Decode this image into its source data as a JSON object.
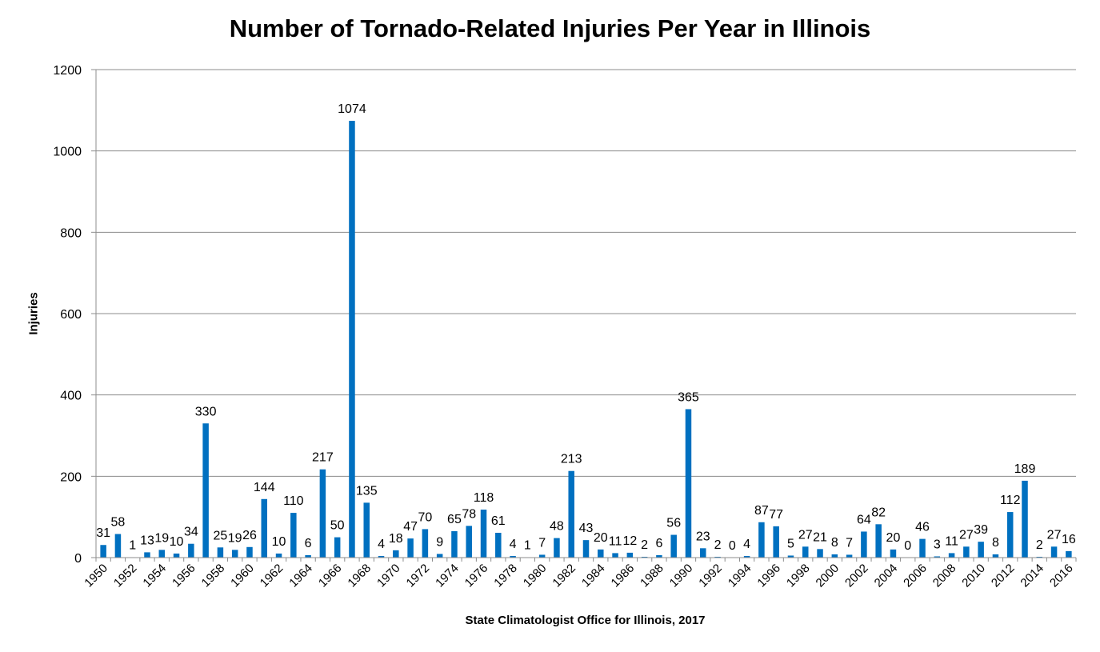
{
  "chart_data": {
    "type": "bar",
    "title": "Number of Tornado-Related Injuries Per Year in Illinois",
    "xlabel": "State Climatologist Office for Illinois, 2017",
    "ylabel": "Injuries",
    "ylim": [
      0,
      1200
    ],
    "yticks": [
      0,
      200,
      400,
      600,
      800,
      1000,
      1200
    ],
    "grid": true,
    "bar_color": "#0070C0",
    "categories": [
      1950,
      1951,
      1952,
      1953,
      1954,
      1955,
      1956,
      1957,
      1958,
      1959,
      1960,
      1961,
      1962,
      1963,
      1964,
      1965,
      1966,
      1967,
      1968,
      1969,
      1970,
      1971,
      1972,
      1973,
      1974,
      1975,
      1976,
      1977,
      1978,
      1979,
      1980,
      1981,
      1982,
      1983,
      1984,
      1985,
      1986,
      1987,
      1988,
      1989,
      1990,
      1991,
      1992,
      1993,
      1994,
      1995,
      1996,
      1997,
      1998,
      1999,
      2000,
      2001,
      2002,
      2003,
      2004,
      2005,
      2006,
      2007,
      2008,
      2009,
      2010,
      2011,
      2012,
      2013,
      2014,
      2015,
      2016
    ],
    "x_tick_labels": [
      1950,
      1952,
      1954,
      1956,
      1958,
      1960,
      1962,
      1964,
      1966,
      1968,
      1970,
      1972,
      1974,
      1976,
      1978,
      1980,
      1982,
      1984,
      1986,
      1988,
      1990,
      1992,
      1994,
      1996,
      1998,
      2000,
      2002,
      2004,
      2006,
      2008,
      2010,
      2012,
      2014,
      2016
    ],
    "values": [
      31,
      58,
      1,
      13,
      19,
      10,
      34,
      330,
      25,
      19,
      26,
      144,
      10,
      110,
      6,
      217,
      50,
      1074,
      135,
      4,
      18,
      47,
      70,
      9,
      65,
      78,
      118,
      61,
      4,
      1,
      7,
      48,
      213,
      43,
      20,
      11,
      12,
      2,
      6,
      56,
      365,
      23,
      2,
      0,
      4,
      87,
      77,
      5,
      27,
      21,
      8,
      7,
      64,
      82,
      20,
      0,
      46,
      3,
      11,
      27,
      39,
      8,
      112,
      189,
      2,
      27,
      16
    ]
  }
}
